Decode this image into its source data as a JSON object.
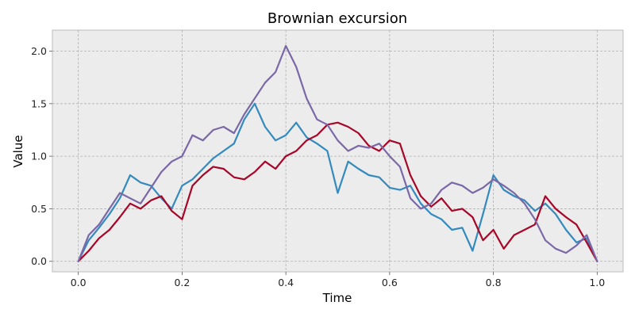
{
  "chart_data": {
    "type": "line",
    "title": "Brownian excursion",
    "xlabel": "Time",
    "ylabel": "Value",
    "xlim": [
      -0.05,
      1.05
    ],
    "ylim": [
      -0.1,
      2.2
    ],
    "xticks": [
      0.0,
      0.2,
      0.4,
      0.6,
      0.8,
      1.0
    ],
    "xtick_labels": [
      "0.0",
      "0.2",
      "0.4",
      "0.6",
      "0.8",
      "1.0"
    ],
    "yticks": [
      0.0,
      0.5,
      1.0,
      1.5,
      2.0
    ],
    "ytick_labels": [
      "0.0",
      "0.5",
      "1.0",
      "1.5",
      "2.0"
    ],
    "grid": true,
    "legend": "none",
    "plot_background": "#ececec",
    "series": [
      {
        "color": "#348abd",
        "x": [
          0.0,
          0.02,
          0.04,
          0.06,
          0.08,
          0.1,
          0.12,
          0.14,
          0.16,
          0.18,
          0.2,
          0.22,
          0.24,
          0.26,
          0.28,
          0.3,
          0.32,
          0.34,
          0.36,
          0.38,
          0.4,
          0.42,
          0.44,
          0.46,
          0.48,
          0.5,
          0.52,
          0.54,
          0.56,
          0.58,
          0.6,
          0.62,
          0.64,
          0.66,
          0.68,
          0.7,
          0.72,
          0.74,
          0.76,
          0.78,
          0.8,
          0.82,
          0.84,
          0.86,
          0.88,
          0.9,
          0.92,
          0.94,
          0.96,
          0.98,
          1.0
        ],
        "y": [
          0.0,
          0.2,
          0.32,
          0.45,
          0.6,
          0.82,
          0.75,
          0.72,
          0.6,
          0.5,
          0.72,
          0.78,
          0.88,
          0.98,
          1.05,
          1.12,
          1.35,
          1.5,
          1.28,
          1.15,
          1.2,
          1.32,
          1.18,
          1.12,
          1.05,
          0.65,
          0.95,
          0.88,
          0.82,
          0.8,
          0.7,
          0.68,
          0.72,
          0.55,
          0.45,
          0.4,
          0.3,
          0.32,
          0.1,
          0.45,
          0.82,
          0.68,
          0.62,
          0.58,
          0.48,
          0.55,
          0.45,
          0.3,
          0.18,
          0.22,
          0.0
        ]
      },
      {
        "color": "#a60628",
        "x": [
          0.0,
          0.02,
          0.04,
          0.06,
          0.08,
          0.1,
          0.12,
          0.14,
          0.16,
          0.18,
          0.2,
          0.22,
          0.24,
          0.26,
          0.28,
          0.3,
          0.32,
          0.34,
          0.36,
          0.38,
          0.4,
          0.42,
          0.44,
          0.46,
          0.48,
          0.5,
          0.52,
          0.54,
          0.56,
          0.58,
          0.6,
          0.62,
          0.64,
          0.66,
          0.68,
          0.7,
          0.72,
          0.74,
          0.76,
          0.78,
          0.8,
          0.82,
          0.84,
          0.86,
          0.88,
          0.9,
          0.92,
          0.94,
          0.96,
          0.98,
          1.0
        ],
        "y": [
          0.0,
          0.1,
          0.22,
          0.3,
          0.42,
          0.55,
          0.5,
          0.58,
          0.62,
          0.48,
          0.4,
          0.72,
          0.82,
          0.9,
          0.88,
          0.8,
          0.78,
          0.85,
          0.95,
          0.88,
          1.0,
          1.05,
          1.15,
          1.2,
          1.3,
          1.32,
          1.28,
          1.22,
          1.1,
          1.05,
          1.15,
          1.12,
          0.82,
          0.62,
          0.52,
          0.6,
          0.48,
          0.5,
          0.42,
          0.2,
          0.3,
          0.12,
          0.25,
          0.3,
          0.35,
          0.62,
          0.5,
          0.42,
          0.35,
          0.18,
          0.0
        ]
      },
      {
        "color": "#7a68a6",
        "x": [
          0.0,
          0.02,
          0.04,
          0.06,
          0.08,
          0.1,
          0.12,
          0.14,
          0.16,
          0.18,
          0.2,
          0.22,
          0.24,
          0.26,
          0.28,
          0.3,
          0.32,
          0.34,
          0.36,
          0.38,
          0.4,
          0.42,
          0.44,
          0.46,
          0.48,
          0.5,
          0.52,
          0.54,
          0.56,
          0.58,
          0.6,
          0.62,
          0.64,
          0.66,
          0.68,
          0.7,
          0.72,
          0.74,
          0.76,
          0.78,
          0.8,
          0.82,
          0.84,
          0.86,
          0.88,
          0.9,
          0.92,
          0.94,
          0.96,
          0.98,
          1.0
        ],
        "y": [
          0.0,
          0.25,
          0.35,
          0.5,
          0.65,
          0.6,
          0.55,
          0.7,
          0.85,
          0.95,
          1.0,
          1.2,
          1.15,
          1.25,
          1.28,
          1.22,
          1.4,
          1.55,
          1.7,
          1.8,
          2.05,
          1.85,
          1.55,
          1.35,
          1.3,
          1.15,
          1.05,
          1.1,
          1.08,
          1.12,
          1.0,
          0.9,
          0.6,
          0.5,
          0.55,
          0.68,
          0.75,
          0.72,
          0.65,
          0.7,
          0.78,
          0.72,
          0.65,
          0.55,
          0.4,
          0.2,
          0.12,
          0.08,
          0.15,
          0.25,
          0.0
        ]
      }
    ]
  }
}
